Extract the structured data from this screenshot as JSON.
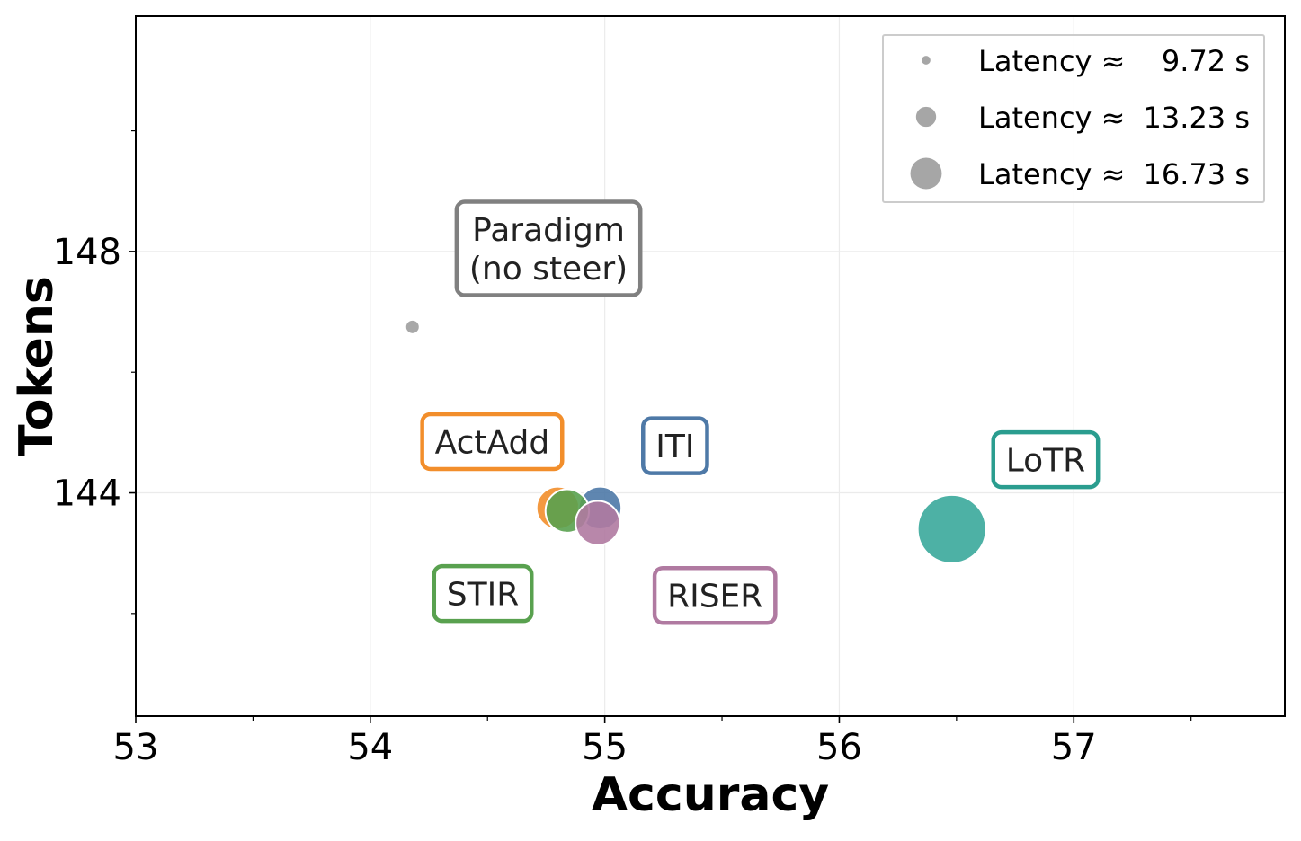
{
  "chart_data": {
    "type": "scatter",
    "xlabel": "Accuracy",
    "ylabel": "Tokens",
    "xlim": [
      53,
      57.9
    ],
    "ylim": [
      140.3,
      151.9
    ],
    "x_ticks": [
      53,
      54,
      55,
      56,
      57
    ],
    "x_tick_labels": [
      "53",
      "54",
      "55",
      "56",
      "57"
    ],
    "x_minor_ticks": [
      53.5,
      54.5,
      55.5,
      56.5,
      57.5
    ],
    "y_ticks": [
      144,
      148
    ],
    "y_tick_labels": [
      "144",
      "148"
    ],
    "y_minor_ticks": [
      142,
      146,
      150
    ],
    "grid": true,
    "legend": {
      "position": "upper right",
      "title": "",
      "entries": [
        {
          "label": "Latency ≈",
          "value": "9.72 s",
          "latency": 9.72
        },
        {
          "label": "Latency ≈",
          "value": "13.23 s",
          "latency": 13.23
        },
        {
          "label": "Latency ≈",
          "value": "16.73 s",
          "latency": 16.73
        }
      ]
    },
    "series": [
      {
        "name": "Paradigm\n(no steer)",
        "x": 54.18,
        "y": 146.75,
        "latency": 9.72,
        "color": "#9e9e9e",
        "label_color": "#808080",
        "label_x": 54.76,
        "label_y": 148.05
      },
      {
        "name": "ActAdd",
        "x": 54.8,
        "y": 143.75,
        "latency": 13.4,
        "color": "#f28e2b",
        "label_color": "#f28e2b",
        "label_x": 54.52,
        "label_y": 144.85
      },
      {
        "name": "ITI",
        "x": 54.98,
        "y": 143.75,
        "latency": 13.4,
        "color": "#4e79a7",
        "label_color": "#4e79a7",
        "label_x": 55.3,
        "label_y": 144.78
      },
      {
        "name": "STIR",
        "x": 54.84,
        "y": 143.7,
        "latency": 13.5,
        "color": "#59a14f",
        "label_color": "#59a14f",
        "label_x": 54.48,
        "label_y": 142.33
      },
      {
        "name": "RISER",
        "x": 54.97,
        "y": 143.5,
        "latency": 13.6,
        "color": "#b07aa1",
        "label_color": "#b07aa1",
        "label_x": 55.47,
        "label_y": 142.3
      },
      {
        "name": "LoTR",
        "x": 56.48,
        "y": 143.4,
        "latency": 16.73,
        "color": "#3aa89b",
        "label_color": "#2a9d8f",
        "label_x": 56.88,
        "label_y": 144.55
      }
    ]
  }
}
